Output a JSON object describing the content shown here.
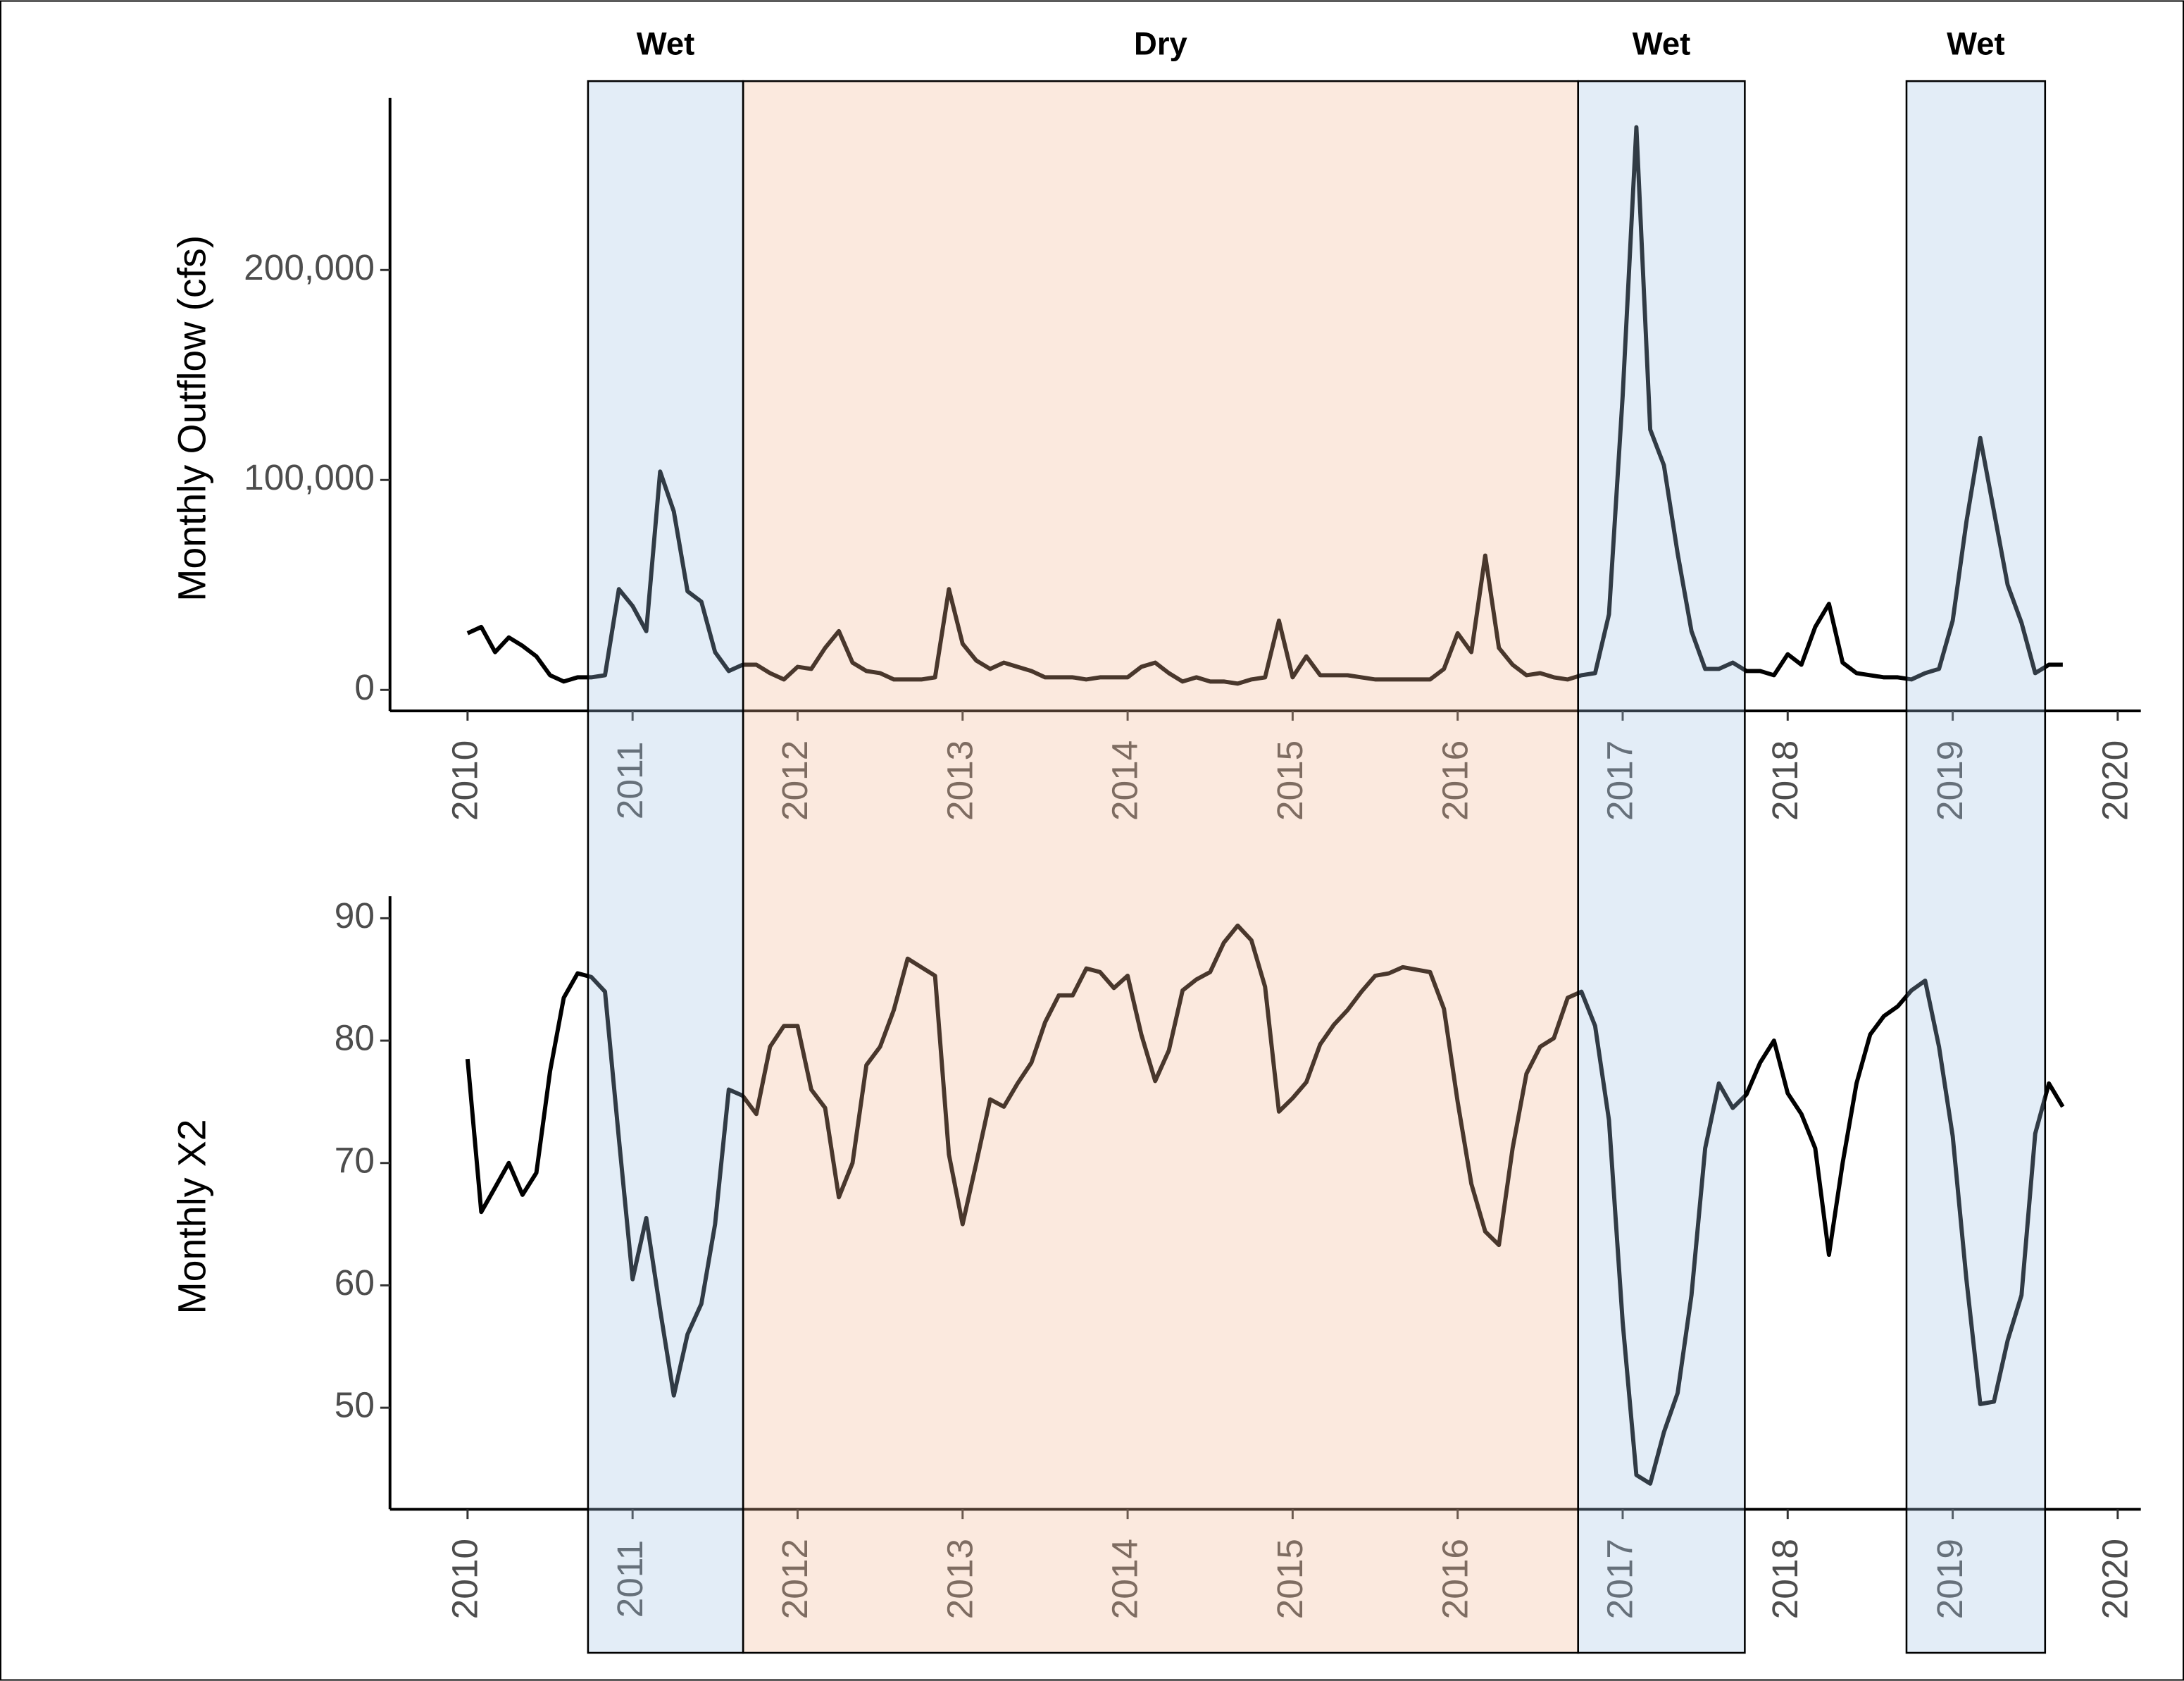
{
  "chart_data": [
    {
      "type": "line",
      "y_label": "Monthly Outflow (cfs)",
      "color": "#000000",
      "x": [
        2010,
        2010.083,
        2010.167,
        2010.25,
        2010.333,
        2010.417,
        2010.5,
        2010.583,
        2010.667,
        2010.75,
        2010.833,
        2010.917,
        2011,
        2011.083,
        2011.167,
        2011.25,
        2011.333,
        2011.417,
        2011.5,
        2011.583,
        2011.667,
        2011.75,
        2011.833,
        2011.917,
        2012,
        2012.083,
        2012.167,
        2012.25,
        2012.333,
        2012.417,
        2012.5,
        2012.583,
        2012.667,
        2012.75,
        2012.833,
        2012.917,
        2013,
        2013.083,
        2013.167,
        2013.25,
        2013.333,
        2013.417,
        2013.5,
        2013.583,
        2013.667,
        2013.75,
        2013.833,
        2013.917,
        2014,
        2014.083,
        2014.167,
        2014.25,
        2014.333,
        2014.417,
        2014.5,
        2014.583,
        2014.667,
        2014.75,
        2014.833,
        2014.917,
        2015,
        2015.083,
        2015.167,
        2015.25,
        2015.333,
        2015.417,
        2015.5,
        2015.583,
        2015.667,
        2015.75,
        2015.833,
        2015.917,
        2016,
        2016.083,
        2016.167,
        2016.25,
        2016.333,
        2016.417,
        2016.5,
        2016.583,
        2016.667,
        2016.75,
        2016.833,
        2016.917,
        2017,
        2017.083,
        2017.167,
        2017.25,
        2017.333,
        2017.417,
        2017.5,
        2017.583,
        2017.667,
        2017.75,
        2017.833,
        2017.917,
        2018,
        2018.083,
        2018.167,
        2018.25,
        2018.333,
        2018.417,
        2018.5,
        2018.583,
        2018.667,
        2018.75,
        2018.833,
        2018.917,
        2019,
        2019.083,
        2019.167,
        2019.25,
        2019.333,
        2019.417,
        2019.5,
        2019.583,
        2019.667
      ],
      "values": [
        27000,
        30000,
        18000,
        25000,
        21000,
        16000,
        7000,
        4000,
        6000,
        6000,
        7000,
        48000,
        40000,
        28000,
        104000,
        85000,
        47000,
        42000,
        18000,
        9000,
        12000,
        12000,
        8000,
        5000,
        11000,
        10000,
        20000,
        28000,
        13000,
        9000,
        8000,
        5000,
        5000,
        5000,
        6000,
        48000,
        22000,
        14000,
        10000,
        13000,
        11000,
        9000,
        6000,
        6000,
        6000,
        5000,
        6000,
        6000,
        6000,
        11000,
        13000,
        8000,
        4000,
        6000,
        4000,
        4000,
        3000,
        5000,
        6000,
        33000,
        6000,
        16000,
        7000,
        7000,
        7000,
        6000,
        5000,
        5000,
        5000,
        5000,
        5000,
        10000,
        27000,
        18000,
        64000,
        20000,
        12000,
        7000,
        8000,
        6000,
        5000,
        7000,
        8000,
        36000,
        140000,
        268000,
        124000,
        107000,
        65000,
        28000,
        10000,
        10000,
        13000,
        9000,
        9000,
        7000,
        17000,
        12000,
        30000,
        41000,
        13000,
        8000,
        7000,
        6000,
        6000,
        5000,
        8000,
        10000,
        33000,
        80000,
        120000,
        85000,
        50000,
        32000,
        8000,
        12000,
        12000
      ],
      "xlim": [
        2009.53,
        2020.14
      ],
      "xticks": [
        2010,
        2011,
        2012,
        2013,
        2014,
        2015,
        2016,
        2017,
        2018,
        2019,
        2020
      ],
      "ylim": [
        -10000,
        282000
      ],
      "yticks": [
        0,
        {
          "value": 100000,
          "label": "100,000"
        },
        {
          "value": 200000,
          "label": "200,000"
        }
      ],
      "periods": [
        {
          "label": "Wet",
          "start": 2010.73,
          "end": 2011.67,
          "color": "#a2c3e4"
        },
        {
          "label": "Dry",
          "start": 2011.67,
          "end": 2016.73,
          "color": "#f2b691"
        },
        {
          "label": "Wet",
          "start": 2016.73,
          "end": 2017.74,
          "color": "#a2c3e4"
        },
        {
          "label": "Wet",
          "start": 2018.72,
          "end": 2019.56,
          "color": "#a2c3e4"
        }
      ]
    },
    {
      "type": "line",
      "y_label": "Monthly X2",
      "color": "#000000",
      "x": [
        2010,
        2010.083,
        2010.167,
        2010.25,
        2010.333,
        2010.417,
        2010.5,
        2010.583,
        2010.667,
        2010.75,
        2010.833,
        2010.917,
        2011,
        2011.083,
        2011.167,
        2011.25,
        2011.333,
        2011.417,
        2011.5,
        2011.583,
        2011.667,
        2011.75,
        2011.833,
        2011.917,
        2012,
        2012.083,
        2012.167,
        2012.25,
        2012.333,
        2012.417,
        2012.5,
        2012.583,
        2012.667,
        2012.75,
        2012.833,
        2012.917,
        2013,
        2013.083,
        2013.167,
        2013.25,
        2013.333,
        2013.417,
        2013.5,
        2013.583,
        2013.667,
        2013.75,
        2013.833,
        2013.917,
        2014,
        2014.083,
        2014.167,
        2014.25,
        2014.333,
        2014.417,
        2014.5,
        2014.583,
        2014.667,
        2014.75,
        2014.833,
        2014.917,
        2015,
        2015.083,
        2015.167,
        2015.25,
        2015.333,
        2015.417,
        2015.5,
        2015.583,
        2015.667,
        2015.75,
        2015.833,
        2015.917,
        2016,
        2016.083,
        2016.167,
        2016.25,
        2016.333,
        2016.417,
        2016.5,
        2016.583,
        2016.667,
        2016.75,
        2016.833,
        2016.917,
        2017,
        2017.083,
        2017.167,
        2017.25,
        2017.333,
        2017.417,
        2017.5,
        2017.583,
        2017.667,
        2017.75,
        2017.833,
        2017.917,
        2018,
        2018.083,
        2018.167,
        2018.25,
        2018.333,
        2018.417,
        2018.5,
        2018.583,
        2018.667,
        2018.75,
        2018.833,
        2018.917,
        2019,
        2019.083,
        2019.167,
        2019.25,
        2019.333,
        2019.417,
        2019.5,
        2019.583,
        2019.667
      ],
      "values": [
        78.5,
        66,
        68,
        70,
        67.4,
        69.2,
        77.5,
        83.5,
        85.5,
        85.2,
        84,
        72,
        60.5,
        65.5,
        58,
        51,
        56,
        58.5,
        65,
        76,
        75.5,
        74,
        79.5,
        81.2,
        81.2,
        76,
        74.5,
        67.2,
        70,
        78,
        79.5,
        82.5,
        86.7,
        86,
        85.3,
        70.7,
        65,
        70,
        75.2,
        74.6,
        76.5,
        78.2,
        81.5,
        83.7,
        83.7,
        85.9,
        85.6,
        84.3,
        85.3,
        80.5,
        76.7,
        79.2,
        84.1,
        85,
        85.6,
        88,
        89.4,
        88.2,
        84.4,
        74.2,
        75.3,
        76.6,
        79.7,
        81.3,
        82.5,
        84,
        85.3,
        85.5,
        86,
        85.8,
        85.6,
        82.6,
        75,
        68.3,
        64.4,
        63.3,
        71.2,
        77.3,
        79.5,
        80.2,
        83.5,
        84,
        81.2,
        73.5,
        57,
        44.5,
        43.8,
        48,
        51.2,
        59.2,
        71.2,
        76.5,
        74.5,
        75.6,
        78.2,
        80,
        75.7,
        74,
        71.2,
        62.5,
        70,
        76.5,
        80.5,
        82,
        82.8,
        84.1,
        84.9,
        79.5,
        72.2,
        60.5,
        50.3,
        50.5,
        55.5,
        59.2,
        72.4,
        76.5,
        74.6
      ],
      "xlim": [
        2009.53,
        2020.14
      ],
      "xticks": [
        2010,
        2011,
        2012,
        2013,
        2014,
        2015,
        2016,
        2017,
        2018,
        2019,
        2020
      ],
      "ylim": [
        41.7,
        91.8
      ],
      "yticks": [
        50,
        60,
        70,
        80,
        90
      ]
    }
  ]
}
